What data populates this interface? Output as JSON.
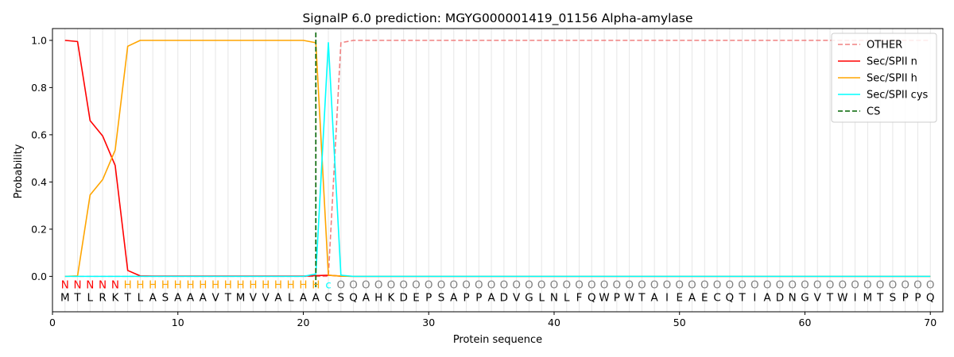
{
  "chart_data": {
    "type": "line",
    "title": "SignalP 6.0 prediction: MGYG000001419_01156 Alpha-amylase",
    "xlabel": "Protein sequence",
    "ylabel": "Probability",
    "xlim": [
      0,
      71
    ],
    "ylim": [
      -0.15,
      1.05
    ],
    "x_ticks": [
      0,
      10,
      20,
      30,
      40,
      50,
      60,
      70
    ],
    "y_ticks": [
      0.0,
      0.2,
      0.4,
      0.6,
      0.8,
      1.0
    ],
    "sequence": [
      "M",
      "T",
      "L",
      "R",
      "K",
      "T",
      "L",
      "A",
      "S",
      "A",
      "A",
      "A",
      "V",
      "T",
      "M",
      "V",
      "V",
      "A",
      "L",
      "A",
      "A",
      "C",
      "S",
      "Q",
      "A",
      "H",
      "K",
      "D",
      "E",
      "P",
      "S",
      "A",
      "P",
      "P",
      "A",
      "D",
      "V",
      "G",
      "L",
      "N",
      "L",
      "F",
      "Q",
      "W",
      "P",
      "W",
      "T",
      "A",
      "I",
      "E",
      "A",
      "E",
      "C",
      "Q",
      "T",
      "I",
      "A",
      "D",
      "N",
      "G",
      "V",
      "T",
      "W",
      "I",
      "M",
      "T",
      "S",
      "P",
      "P",
      "Q"
    ],
    "labels": [
      "N",
      "N",
      "N",
      "N",
      "N",
      "H",
      "H",
      "H",
      "H",
      "H",
      "H",
      "H",
      "H",
      "H",
      "H",
      "H",
      "H",
      "H",
      "H",
      "H",
      "H",
      "c",
      "O",
      "O",
      "O",
      "O",
      "O",
      "O",
      "O",
      "O",
      "O",
      "O",
      "O",
      "O",
      "O",
      "O",
      "O",
      "O",
      "O",
      "O",
      "O",
      "O",
      "O",
      "O",
      "O",
      "O",
      "O",
      "O",
      "O",
      "O",
      "O",
      "O",
      "O",
      "O",
      "O",
      "O",
      "O",
      "O",
      "O",
      "O",
      "O",
      "O",
      "O",
      "O",
      "O",
      "O",
      "O",
      "O",
      "O",
      "O"
    ],
    "label_colors": {
      "N": "#ff0000",
      "H": "#ffa500",
      "c": "#00ffff",
      "O": "#808080"
    },
    "series": [
      {
        "name": "OTHER",
        "color": "#f08080",
        "dash": true,
        "values": [
          0,
          0,
          0,
          0,
          0,
          0,
          0,
          0,
          0,
          0,
          0,
          0,
          0,
          0,
          0,
          0,
          0,
          0,
          0,
          0,
          0,
          0,
          0.99,
          1.0,
          1.0,
          1.0,
          1.0,
          1.0,
          1.0,
          1.0,
          1.0,
          1.0,
          1.0,
          1.0,
          1.0,
          1.0,
          1.0,
          1.0,
          1.0,
          1.0,
          1.0,
          1.0,
          1.0,
          1.0,
          1.0,
          1.0,
          1.0,
          1.0,
          1.0,
          1.0,
          1.0,
          1.0,
          1.0,
          1.0,
          1.0,
          1.0,
          1.0,
          1.0,
          1.0,
          1.0,
          1.0,
          1.0,
          1.0,
          1.0,
          1.0,
          1.0,
          1.0,
          1.0,
          1.0,
          1.0
        ]
      },
      {
        "name": "Sec/SPII n",
        "color": "#ff0000",
        "dash": false,
        "values": [
          1.0,
          0.995,
          0.66,
          0.595,
          0.47,
          0.025,
          0.002,
          0.001,
          0.001,
          0.001,
          0.001,
          0.001,
          0.001,
          0.001,
          0.001,
          0.001,
          0.001,
          0.001,
          0.001,
          0.001,
          0.003,
          0.005,
          0.001,
          0,
          0,
          0,
          0,
          0,
          0,
          0,
          0,
          0,
          0,
          0,
          0,
          0,
          0,
          0,
          0,
          0,
          0,
          0,
          0,
          0,
          0,
          0,
          0,
          0,
          0,
          0,
          0,
          0,
          0,
          0,
          0,
          0,
          0,
          0,
          0,
          0,
          0,
          0,
          0,
          0,
          0,
          0,
          0,
          0,
          0,
          0
        ]
      },
      {
        "name": "Sec/SPII h",
        "color": "#ffa500",
        "dash": false,
        "values": [
          0,
          0.002,
          0.345,
          0.41,
          0.535,
          0.975,
          1.0,
          1.0,
          1.0,
          1.0,
          1.0,
          1.0,
          1.0,
          1.0,
          1.0,
          1.0,
          1.0,
          1.0,
          1.0,
          1.0,
          0.99,
          0.005,
          0.001,
          0,
          0,
          0,
          0,
          0,
          0,
          0,
          0,
          0,
          0,
          0,
          0,
          0,
          0,
          0,
          0,
          0,
          0,
          0,
          0,
          0,
          0,
          0,
          0,
          0,
          0,
          0,
          0,
          0,
          0,
          0,
          0,
          0,
          0,
          0,
          0,
          0,
          0,
          0,
          0,
          0,
          0,
          0,
          0,
          0,
          0,
          0
        ]
      },
      {
        "name": "Sec/SPII cys",
        "color": "#00ffff",
        "dash": false,
        "values": [
          0,
          0,
          0,
          0,
          0,
          0,
          0,
          0,
          0,
          0,
          0,
          0,
          0,
          0,
          0,
          0,
          0,
          0,
          0,
          0,
          0.01,
          0.99,
          0.005,
          0,
          0,
          0,
          0,
          0,
          0,
          0,
          0,
          0,
          0,
          0,
          0,
          0,
          0,
          0,
          0,
          0,
          0,
          0,
          0,
          0,
          0,
          0,
          0,
          0,
          0,
          0,
          0,
          0,
          0,
          0,
          0,
          0,
          0,
          0,
          0,
          0,
          0,
          0,
          0,
          0,
          0,
          0,
          0,
          0,
          0,
          0
        ]
      }
    ],
    "cs_position": 21,
    "cs_color": "#006400",
    "legend": [
      {
        "name": "OTHER",
        "color": "#f08080",
        "dash": true
      },
      {
        "name": "Sec/SPII n",
        "color": "#ff0000",
        "dash": false
      },
      {
        "name": "Sec/SPII h",
        "color": "#ffa500",
        "dash": false
      },
      {
        "name": "Sec/SPII cys",
        "color": "#00ffff",
        "dash": false
      },
      {
        "name": "CS",
        "color": "#006400",
        "dash": true
      }
    ],
    "legend_position": "top-right",
    "grid": "vertical lines at each residue"
  }
}
